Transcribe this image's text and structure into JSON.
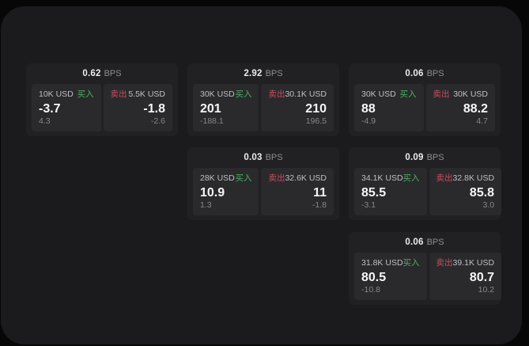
{
  "labels": {
    "bps_unit": "BPS",
    "buy": "买入",
    "sell": "卖出"
  },
  "colors": {
    "buy_green": "#4fae64",
    "sell_red": "#c94b5c",
    "page_bg": "#070708",
    "panel_bg": "#1b1b1d",
    "card_bg": "#212124",
    "tile_bg": "#2a2a2d"
  },
  "cards": [
    {
      "bps": "0.62",
      "buy": {
        "amount": "10K USD",
        "price": "-3.7",
        "delta": "4.3"
      },
      "sell": {
        "amount": "5.5K USD",
        "price": "-1.8",
        "delta": "-2.6"
      }
    },
    {
      "bps": "2.92",
      "buy": {
        "amount": "30K USD",
        "price": "201",
        "delta": "-188.1"
      },
      "sell": {
        "amount": "30.1K USD",
        "price": "210",
        "delta": "196.5"
      }
    },
    {
      "bps": "0.06",
      "buy": {
        "amount": "30K USD",
        "price": "88",
        "delta": "-4.9"
      },
      "sell": {
        "amount": "30K USD",
        "price": "88.2",
        "delta": "4.7"
      }
    },
    {
      "bps": "0.03",
      "buy": {
        "amount": "28K USD",
        "price": "10.9",
        "delta": "1.3"
      },
      "sell": {
        "amount": "32.6K USD",
        "price": "11",
        "delta": "-1.8"
      }
    },
    {
      "bps": "0.09",
      "buy": {
        "amount": "34.1K USD",
        "price": "85.5",
        "delta": "-3.1"
      },
      "sell": {
        "amount": "32.8K USD",
        "price": "85.8",
        "delta": "3.0"
      }
    },
    {
      "bps": "0.06",
      "buy": {
        "amount": "31.8K USD",
        "price": "80.5",
        "delta": "-10.8"
      },
      "sell": {
        "amount": "39.1K USD",
        "price": "80.7",
        "delta": "10.2"
      }
    }
  ]
}
